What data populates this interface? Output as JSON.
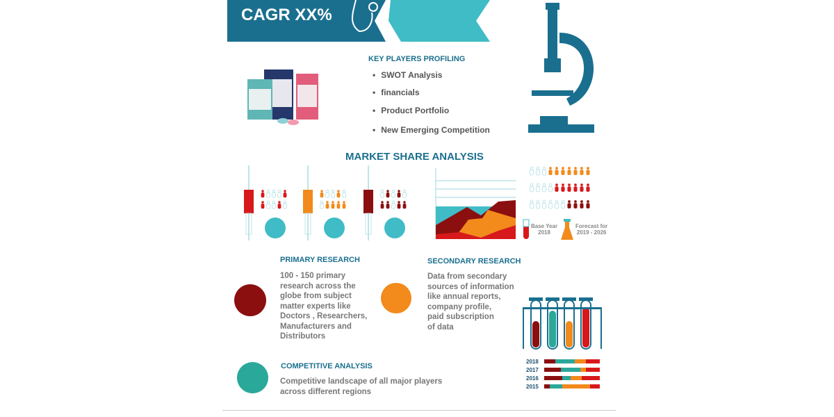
{
  "banner": {
    "title": "CAGR XX%",
    "colors": {
      "dark": "#1a6f8f",
      "light": "#3fbcc6"
    }
  },
  "key_players": {
    "title": "KEY PLAYERS PROFILING",
    "items": [
      "SWOT Analysis",
      "financials",
      "Product Portfolio",
      "New Emerging Competition"
    ]
  },
  "market_share": {
    "title": "MARKET SHARE ANALYSIS",
    "base_year_label": "Base Year\n2018",
    "forecast_label": "Forecast for\n2019 - 2026"
  },
  "primary": {
    "title": "PRIMARY RESEARCH",
    "text": "100 - 150 primary\nresearch across the\nglobe from subject\nmatter experts like\nDoctors , Researchers,\nManufacturers and\nDistributors",
    "icon": "pills-icon"
  },
  "secondary": {
    "title": "SECONDARY RESEARCH",
    "text": "Data from secondary\nsources of information\nlike annual reports,\ncompany profile,\npaid subscription\nof data",
    "icon": "tablets-icon"
  },
  "competitive": {
    "title": "COMPETITIVE ANALYSIS",
    "text": "Competitive landscape of all major players\nacross different regions",
    "icon": "capsules-icon"
  },
  "years": [
    "2018",
    "2017",
    "2016",
    "2015"
  ],
  "colors": {
    "red": "#d7191c",
    "orange": "#f28a1c",
    "maroon": "#8b0f0f",
    "teal": "#3fbcc6",
    "green": "#2aa89a"
  }
}
